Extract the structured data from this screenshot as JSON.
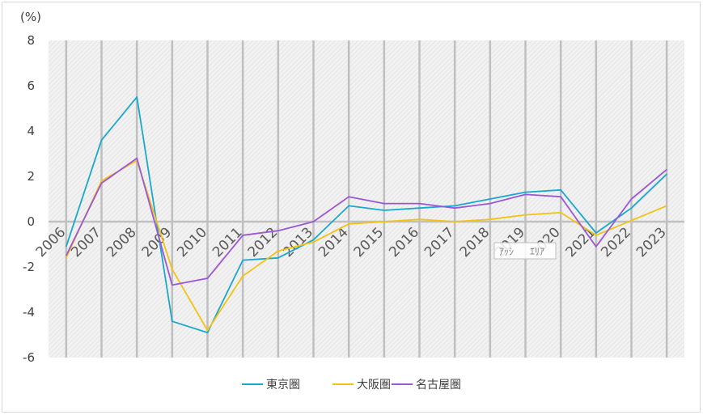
{
  "chart_data": {
    "type": "line",
    "y_unit_label": "(%)",
    "ylim": [
      -6,
      8
    ],
    "yticks": [
      -6,
      -4,
      -2,
      0,
      2,
      4,
      6,
      8
    ],
    "categories": [
      "2006",
      "2007",
      "2008",
      "2009",
      "2010",
      "2011",
      "2012",
      "2013",
      "2014",
      "2015",
      "2016",
      "2017",
      "2018",
      "2019",
      "2020",
      "2021",
      "2022",
      "2023"
    ],
    "grid": true,
    "legend_position": "bottom",
    "series": [
      {
        "name": "東京圏",
        "color": "#1ba7cc",
        "values": [
          -1.1,
          3.6,
          5.5,
          -4.4,
          -4.9,
          -1.7,
          -1.6,
          -0.8,
          0.7,
          0.5,
          0.6,
          0.7,
          1.0,
          1.3,
          1.4,
          -0.5,
          0.6,
          2.1
        ]
      },
      {
        "name": "大阪圏",
        "color": "#f2c314",
        "values": [
          -1.6,
          1.8,
          2.7,
          -2.1,
          -4.8,
          -2.4,
          -1.3,
          -0.9,
          -0.1,
          0.0,
          0.1,
          0.0,
          0.1,
          0.3,
          0.4,
          -0.6,
          0.05,
          0.7
        ]
      },
      {
        "name": "名古屋圏",
        "color": "#9b58d4",
        "values": [
          -1.5,
          1.7,
          2.8,
          -2.8,
          -2.5,
          -0.6,
          -0.4,
          0.0,
          1.1,
          0.8,
          0.8,
          0.6,
          0.8,
          1.2,
          1.1,
          -1.1,
          1.0,
          2.3
        ]
      }
    ]
  },
  "watermark": {
    "left_text": "ｱｯｼ",
    "right_text": "ｴﾘｱ"
  }
}
